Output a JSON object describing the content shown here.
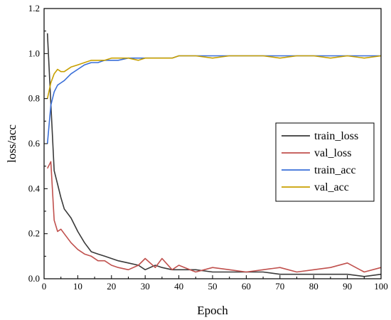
{
  "chart_data": {
    "type": "line",
    "title": "",
    "xlabel": "Epoch",
    "ylabel": "loss/acc",
    "xlim": [
      0,
      100
    ],
    "ylim": [
      0,
      1.2
    ],
    "xticks": [
      "0",
      "10",
      "20",
      "30",
      "40",
      "50",
      "60",
      "70",
      "80",
      "90",
      "100"
    ],
    "yticks": [
      "0.0",
      "0.2",
      "0.4",
      "0.6",
      "0.8",
      "1.0",
      "1.2"
    ],
    "grid": false,
    "legend_position": "right",
    "series": [
      {
        "name": "train_loss",
        "color": "#3a3a3a",
        "x": [
          1,
          2,
          3,
          4,
          5,
          6,
          8,
          10,
          12,
          14,
          16,
          18,
          20,
          22,
          25,
          28,
          30,
          33,
          35,
          38,
          40,
          45,
          50,
          55,
          60,
          65,
          70,
          75,
          80,
          85,
          90,
          95,
          100
        ],
        "y": [
          1.09,
          0.78,
          0.48,
          0.42,
          0.36,
          0.31,
          0.27,
          0.21,
          0.16,
          0.12,
          0.11,
          0.1,
          0.09,
          0.08,
          0.07,
          0.06,
          0.04,
          0.06,
          0.05,
          0.04,
          0.04,
          0.04,
          0.03,
          0.03,
          0.03,
          0.03,
          0.02,
          0.02,
          0.02,
          0.02,
          0.02,
          0.01,
          0.02
        ]
      },
      {
        "name": "val_loss",
        "color": "#c0504d",
        "x": [
          1,
          2,
          3,
          4,
          5,
          6,
          8,
          10,
          12,
          14,
          16,
          18,
          20,
          22,
          25,
          28,
          30,
          33,
          35,
          38,
          40,
          45,
          50,
          55,
          60,
          65,
          70,
          75,
          80,
          85,
          90,
          95,
          100
        ],
        "y": [
          0.49,
          0.52,
          0.26,
          0.21,
          0.22,
          0.2,
          0.16,
          0.13,
          0.11,
          0.1,
          0.08,
          0.08,
          0.06,
          0.05,
          0.04,
          0.06,
          0.09,
          0.05,
          0.09,
          0.04,
          0.06,
          0.03,
          0.05,
          0.04,
          0.03,
          0.04,
          0.05,
          0.03,
          0.04,
          0.05,
          0.07,
          0.03,
          0.05
        ]
      },
      {
        "name": "train_acc",
        "color": "#3a6fd8",
        "x": [
          1,
          2,
          3,
          4,
          5,
          6,
          8,
          10,
          12,
          14,
          16,
          18,
          20,
          22,
          25,
          28,
          30,
          33,
          35,
          38,
          40,
          45,
          50,
          55,
          60,
          65,
          70,
          75,
          80,
          85,
          90,
          95,
          100
        ],
        "y": [
          0.6,
          0.77,
          0.83,
          0.86,
          0.87,
          0.88,
          0.91,
          0.93,
          0.95,
          0.96,
          0.96,
          0.97,
          0.97,
          0.97,
          0.98,
          0.98,
          0.98,
          0.98,
          0.98,
          0.98,
          0.99,
          0.99,
          0.99,
          0.99,
          0.99,
          0.99,
          0.99,
          0.99,
          0.99,
          0.99,
          0.99,
          0.99,
          0.99
        ]
      },
      {
        "name": "val_acc",
        "color": "#c8a000",
        "x": [
          1,
          2,
          3,
          4,
          5,
          6,
          8,
          10,
          12,
          14,
          16,
          18,
          20,
          22,
          25,
          28,
          30,
          33,
          35,
          38,
          40,
          45,
          50,
          55,
          60,
          65,
          70,
          75,
          80,
          85,
          90,
          95,
          100
        ],
        "y": [
          0.8,
          0.87,
          0.91,
          0.93,
          0.92,
          0.92,
          0.94,
          0.95,
          0.96,
          0.97,
          0.97,
          0.97,
          0.98,
          0.98,
          0.98,
          0.97,
          0.98,
          0.98,
          0.98,
          0.98,
          0.99,
          0.99,
          0.98,
          0.99,
          0.99,
          0.99,
          0.98,
          0.99,
          0.99,
          0.98,
          0.99,
          0.98,
          0.99
        ]
      }
    ]
  }
}
